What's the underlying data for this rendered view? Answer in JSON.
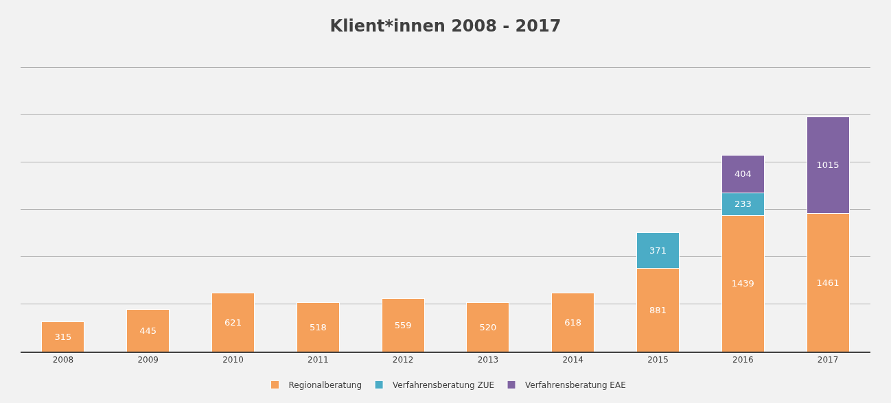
{
  "chart_data": {
    "type": "bar",
    "title": "Klient*innen 2008 - 2017",
    "stacked": true,
    "data_labels": true,
    "grid": "y",
    "legend": "bottom",
    "tick_labels": "x",
    "categories": [
      "2008",
      "2009",
      "2010",
      "2011",
      "2012",
      "2013",
      "2014",
      "2015",
      "2016",
      "2017"
    ],
    "yticks": [
      {
        "value": 0,
        "label": null
      },
      {
        "value": 500,
        "label": null
      },
      {
        "value": 1000,
        "label": null
      },
      {
        "value": 1500,
        "label": null
      },
      {
        "value": 2000,
        "label": null
      },
      {
        "value": 2500,
        "label": null
      },
      {
        "value": 3000,
        "label": null
      }
    ],
    "series": [
      {
        "name": "Regionalberatung",
        "color": "#f5a05a",
        "values": [
          315,
          445,
          621,
          518,
          559,
          520,
          618,
          881,
          1439,
          1461
        ]
      },
      {
        "name": "Verfahrensberatung ZUE",
        "color": "#4bacc6",
        "values": [
          null,
          null,
          null,
          null,
          null,
          null,
          null,
          371,
          233,
          null
        ]
      },
      {
        "name": "Verfahrensberatung EAE",
        "color": "#8064a2",
        "values": [
          null,
          null,
          null,
          null,
          null,
          null,
          null,
          null,
          404,
          1015
        ]
      }
    ]
  }
}
